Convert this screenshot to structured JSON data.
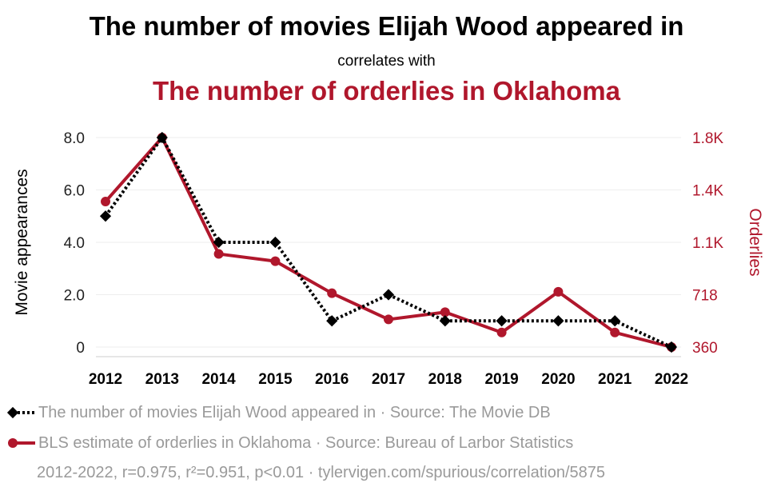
{
  "titles": {
    "main": "The number of movies Elijah Wood appeared in",
    "connector": "correlates with",
    "secondary": "The number of orderlies in Oklahoma"
  },
  "colors": {
    "series1": "#000000",
    "series2": "#b0172c",
    "legend_text": "#9a9a9a",
    "grid": "#eeeeee"
  },
  "chart_data": {
    "type": "line",
    "categories": [
      "2012",
      "2013",
      "2014",
      "2015",
      "2016",
      "2017",
      "2018",
      "2019",
      "2020",
      "2021",
      "2022"
    ],
    "y_left": {
      "label": "Movie appearances",
      "ticks": [
        "0",
        "2.0",
        "4.0",
        "6.0",
        "8.0"
      ],
      "range": [
        0,
        8
      ]
    },
    "y_right": {
      "label": "Orderlies",
      "ticks": [
        "360",
        "718",
        "1.1K",
        "1.4K",
        "1.8K"
      ],
      "range": [
        360,
        1800
      ]
    },
    "grid": true,
    "series": [
      {
        "name": "The number of movies Elijah Wood appeared in · Source: The Movie DB",
        "axis": "left",
        "style": "dotted-diamond",
        "values": [
          5,
          8,
          4,
          4,
          1,
          2,
          1,
          1,
          1,
          1,
          0
        ]
      },
      {
        "name": "BLS estimate of orderlies in Oklahoma · Source: Bureau of Larbor Statistics",
        "axis": "right",
        "style": "solid-circle",
        "values": [
          1360,
          1800,
          1000,
          950,
          730,
          550,
          600,
          460,
          740,
          460,
          360
        ]
      }
    ]
  },
  "footer": "2012-2022, r=0.975, r²=0.951, p<0.01 · tylervigen.com/spurious/correlation/5875"
}
